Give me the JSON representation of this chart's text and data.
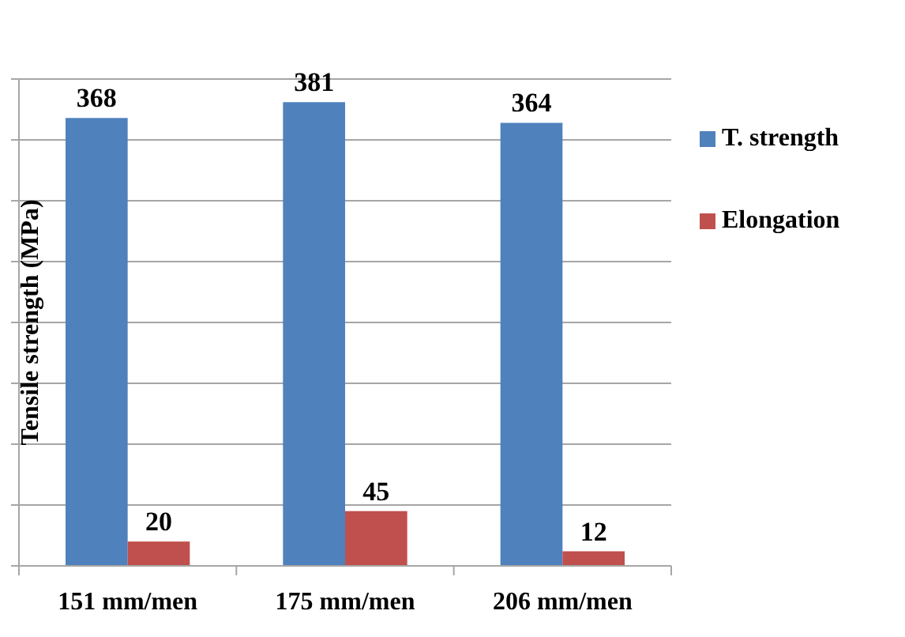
{
  "chart_data": {
    "type": "bar",
    "ylabel": "Tensile strength (MPa)",
    "categories": [
      "151 mm/men",
      "175 mm/men",
      "206 mm/men"
    ],
    "series": [
      {
        "name": "T. strength",
        "color": "#4f81bd",
        "values": [
          368,
          381,
          364
        ]
      },
      {
        "name": "Elongation",
        "color": "#c0504d",
        "values": [
          20,
          45,
          12
        ]
      }
    ],
    "ylim": [
      0,
      400
    ],
    "yticks": [
      {
        "value": 0,
        "label": null
      },
      {
        "value": 50,
        "label": null
      },
      {
        "value": 100,
        "label": null
      },
      {
        "value": 150,
        "label": null
      },
      {
        "value": 200,
        "label": null
      },
      {
        "value": 250,
        "label": null
      },
      {
        "value": 300,
        "label": null
      },
      {
        "value": 350,
        "label": null
      },
      {
        "value": 400,
        "label": null
      }
    ],
    "tick_labels": "x",
    "grid": "y",
    "legend": "right",
    "data_labels": true
  }
}
